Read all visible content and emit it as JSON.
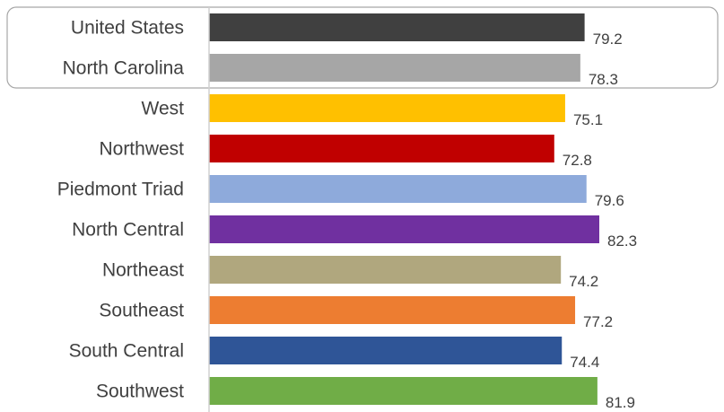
{
  "chart_data": {
    "type": "bar",
    "orientation": "horizontal",
    "title": "",
    "xlabel": "",
    "ylabel": "",
    "categories": [
      "United States",
      "North Carolina",
      "West",
      "Northwest",
      "Piedmont Triad",
      "North Central",
      "Northeast",
      "Southeast",
      "South Central",
      "Southwest"
    ],
    "values": [
      79.2,
      78.3,
      75.1,
      72.8,
      79.6,
      82.3,
      74.2,
      77.2,
      74.4,
      81.9
    ],
    "value_labels": [
      "79.2",
      "78.3",
      "75.1",
      "72.8",
      "79.6",
      "82.3",
      "74.2",
      "77.2",
      "74.4",
      "81.9"
    ],
    "colors": [
      "#404040",
      "#a6a6a6",
      "#ffc000",
      "#c00000",
      "#8eaadb",
      "#7030a0",
      "#b0a77e",
      "#ed7d31",
      "#2f5597",
      "#70ad47"
    ],
    "xlim": [
      0,
      90
    ],
    "highlighted_categories": [
      "United States",
      "North Carolina"
    ],
    "grid": false,
    "legend": "none"
  }
}
